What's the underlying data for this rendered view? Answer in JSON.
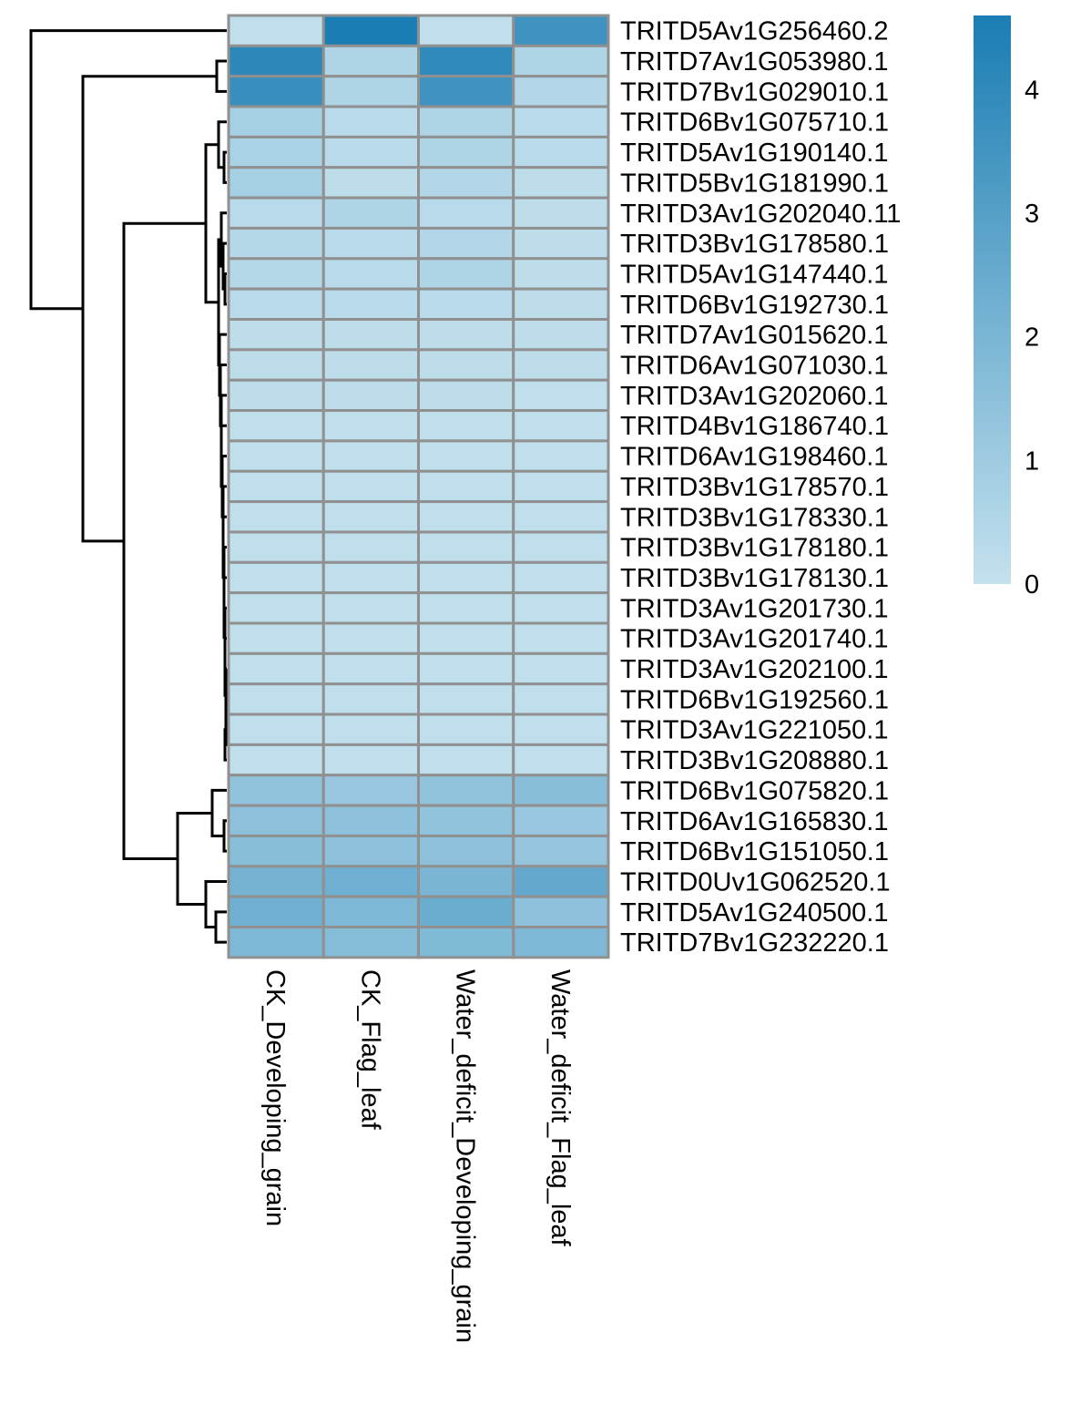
{
  "chart_data": {
    "type": "heatmap",
    "title": "",
    "xlabel": "",
    "ylabel": "",
    "columns": [
      "CK_Developing_grain",
      "CK_Flag_leaf",
      "Water_deficit_Developing_grain",
      "Water_deficit_Flag_leaf"
    ],
    "rows": [
      "TRITD5Av1G256460.2",
      "TRITD7Av1G053980.1",
      "TRITD7Bv1G029010.1",
      "TRITD6Bv1G075710.1",
      "TRITD5Av1G190140.1",
      "TRITD5Bv1G181990.1",
      "TRITD3Av1G202040.11",
      "TRITD3Bv1G178580.1",
      "TRITD5Av1G147440.1",
      "TRITD6Bv1G192730.1",
      "TRITD7Av1G015620.1",
      "TRITD6Av1G071030.1",
      "TRITD3Av1G202060.1",
      "TRITD4Bv1G186740.1",
      "TRITD6Av1G198460.1",
      "TRITD3Bv1G178570.1",
      "TRITD3Bv1G178330.1",
      "TRITD3Bv1G178180.1",
      "TRITD3Bv1G178130.1",
      "TRITD3Av1G201730.1",
      "TRITD3Av1G201740.1",
      "TRITD3Av1G202100.1",
      "TRITD6Bv1G192560.1",
      "TRITD3Av1G221050.1",
      "TRITD3Bv1G208880.1",
      "TRITD6Bv1G075820.1",
      "TRITD6Av1G165830.1",
      "TRITD6Bv1G151050.1",
      "TRITD0Uv1G062520.1",
      "TRITD5Av1G240500.1",
      "TRITD7Bv1G232220.1"
    ],
    "values": [
      [
        0.1,
        4.6,
        0.1,
        3.6
      ],
      [
        4.1,
        0.6,
        4.0,
        0.6
      ],
      [
        3.8,
        0.6,
        3.6,
        0.5
      ],
      [
        0.8,
        0.3,
        0.6,
        0.3
      ],
      [
        0.7,
        0.3,
        0.6,
        0.3
      ],
      [
        0.8,
        0.2,
        0.5,
        0.2
      ],
      [
        0.3,
        0.6,
        0.3,
        0.2
      ],
      [
        0.4,
        0.3,
        0.5,
        0.2
      ],
      [
        0.4,
        0.3,
        0.6,
        0.2
      ],
      [
        0.3,
        0.3,
        0.3,
        0.2
      ],
      [
        0.2,
        0.2,
        0.2,
        0.2
      ],
      [
        0.2,
        0.2,
        0.2,
        0.2
      ],
      [
        0.2,
        0.2,
        0.2,
        0.1
      ],
      [
        0.1,
        0.1,
        0.1,
        0.1
      ],
      [
        0.1,
        0.1,
        0.1,
        0.1
      ],
      [
        0.1,
        0.1,
        0.1,
        0.1
      ],
      [
        0.1,
        0.1,
        0.1,
        0.1
      ],
      [
        0.1,
        0.1,
        0.1,
        0.1
      ],
      [
        0.1,
        0.1,
        0.1,
        0.1
      ],
      [
        0.1,
        0.1,
        0.1,
        0.1
      ],
      [
        0.1,
        0.1,
        0.1,
        0.1
      ],
      [
        0.1,
        0.1,
        0.1,
        0.1
      ],
      [
        0.1,
        0.1,
        0.1,
        0.1
      ],
      [
        0.1,
        0.1,
        0.1,
        0.1
      ],
      [
        0.1,
        0.1,
        0.1,
        0.1
      ],
      [
        1.4,
        1.2,
        1.4,
        1.6
      ],
      [
        1.5,
        1.5,
        1.4,
        1.2
      ],
      [
        1.6,
        1.5,
        1.5,
        1.3
      ],
      [
        2.1,
        2.3,
        2.0,
        2.6
      ],
      [
        2.3,
        1.9,
        2.4,
        1.5
      ],
      [
        1.9,
        1.7,
        1.8,
        1.9
      ]
    ],
    "colorbar": {
      "min": 0,
      "max": 4.6,
      "ticks": [
        0,
        1,
        2,
        3,
        4
      ],
      "low_color": "#c4e1ee",
      "high_color": "#1a7db3"
    },
    "cell_border_color": "#909090",
    "dendrogram": "rows",
    "legend_position": "right"
  }
}
